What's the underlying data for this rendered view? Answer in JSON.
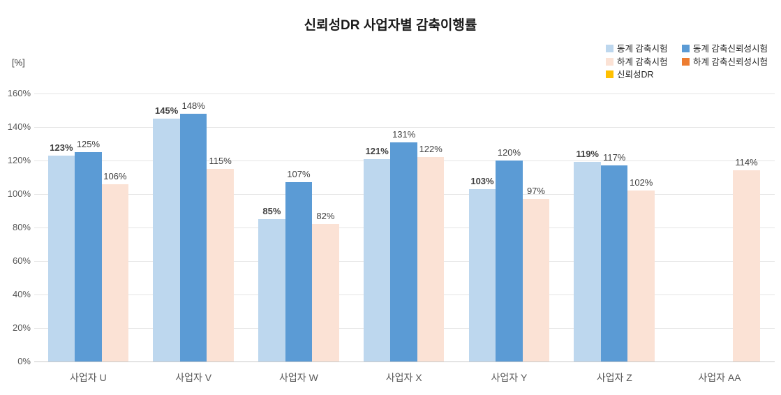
{
  "chart_data": {
    "type": "bar",
    "title": "신뢰성DR 사업자별 감축이행률",
    "unit_label": "[%]",
    "categories": [
      "사업자 U",
      "사업자 V",
      "사업자 W",
      "사업자 X",
      "사업자 Y",
      "사업자 Z",
      "사업자 AA"
    ],
    "series": [
      {
        "name": "동계 감축시험",
        "color": "#BDD7EE",
        "label_bold": true,
        "values": [
          123,
          145,
          85,
          121,
          103,
          119,
          null
        ]
      },
      {
        "name": "동계 감축신뢰성시험",
        "color": "#5B9BD5",
        "label_bold": false,
        "values": [
          125,
          148,
          107,
          131,
          120,
          117,
          null
        ]
      },
      {
        "name": "하계 감축시험",
        "color": "#FBE2D5",
        "label_bold": false,
        "values": [
          106,
          115,
          82,
          122,
          97,
          102,
          114
        ]
      },
      {
        "name": "하계 감축신뢰성시험",
        "color": "#ED7D31",
        "label_bold": false,
        "values": [
          null,
          null,
          null,
          null,
          null,
          null,
          null
        ]
      },
      {
        "name": "신뢰성DR",
        "color": "#FFC000",
        "label_bold": false,
        "values": [
          null,
          null,
          null,
          null,
          null,
          null,
          null
        ]
      }
    ],
    "value_suffix": "%",
    "ylim": [
      0,
      160
    ],
    "ytick_step": 20,
    "yticks": [
      "0%",
      "20%",
      "40%",
      "60%",
      "80%",
      "100%",
      "120%",
      "140%",
      "160%"
    ],
    "grid": true,
    "legend_position": "top-right",
    "legend_columns": [
      [
        0,
        2,
        4
      ],
      [
        1,
        3
      ]
    ]
  }
}
